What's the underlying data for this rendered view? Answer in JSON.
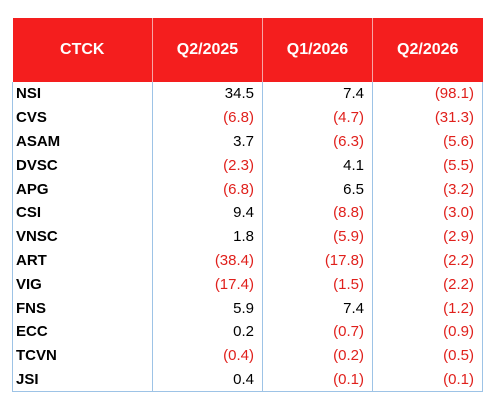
{
  "table": {
    "header": [
      "CTCK",
      "Q2/2025",
      "Q1/2026",
      "Q2/2026"
    ],
    "rows": [
      [
        "NSI",
        "34.5",
        "7.4",
        "(98.1)"
      ],
      [
        "CVS",
        "(6.8)",
        "(4.7)",
        "(31.3)"
      ],
      [
        "ASAM",
        "3.7",
        "(6.3)",
        "(5.6)"
      ],
      [
        "DVSC",
        "(2.3)",
        "4.1",
        "(5.5)"
      ],
      [
        "APG",
        "(6.8)",
        "6.5",
        "(3.2)"
      ],
      [
        "CSI",
        "9.4",
        "(8.8)",
        "(3.0)"
      ],
      [
        "VNSC",
        "1.8",
        "(5.9)",
        "(2.9)"
      ],
      [
        "ART",
        "(38.4)",
        "(17.8)",
        "(2.2)"
      ],
      [
        "VIG",
        "(17.4)",
        "(1.5)",
        "(2.2)"
      ],
      [
        "FNS",
        "5.9",
        "7.4",
        "(1.2)"
      ],
      [
        "ECC",
        "0.2",
        "(0.7)",
        "(0.9)"
      ],
      [
        "TCVN",
        "(0.4)",
        "(0.2)",
        "(0.5)"
      ],
      [
        "JSI",
        "0.4",
        "(0.1)",
        "(0.1)"
      ]
    ]
  }
}
